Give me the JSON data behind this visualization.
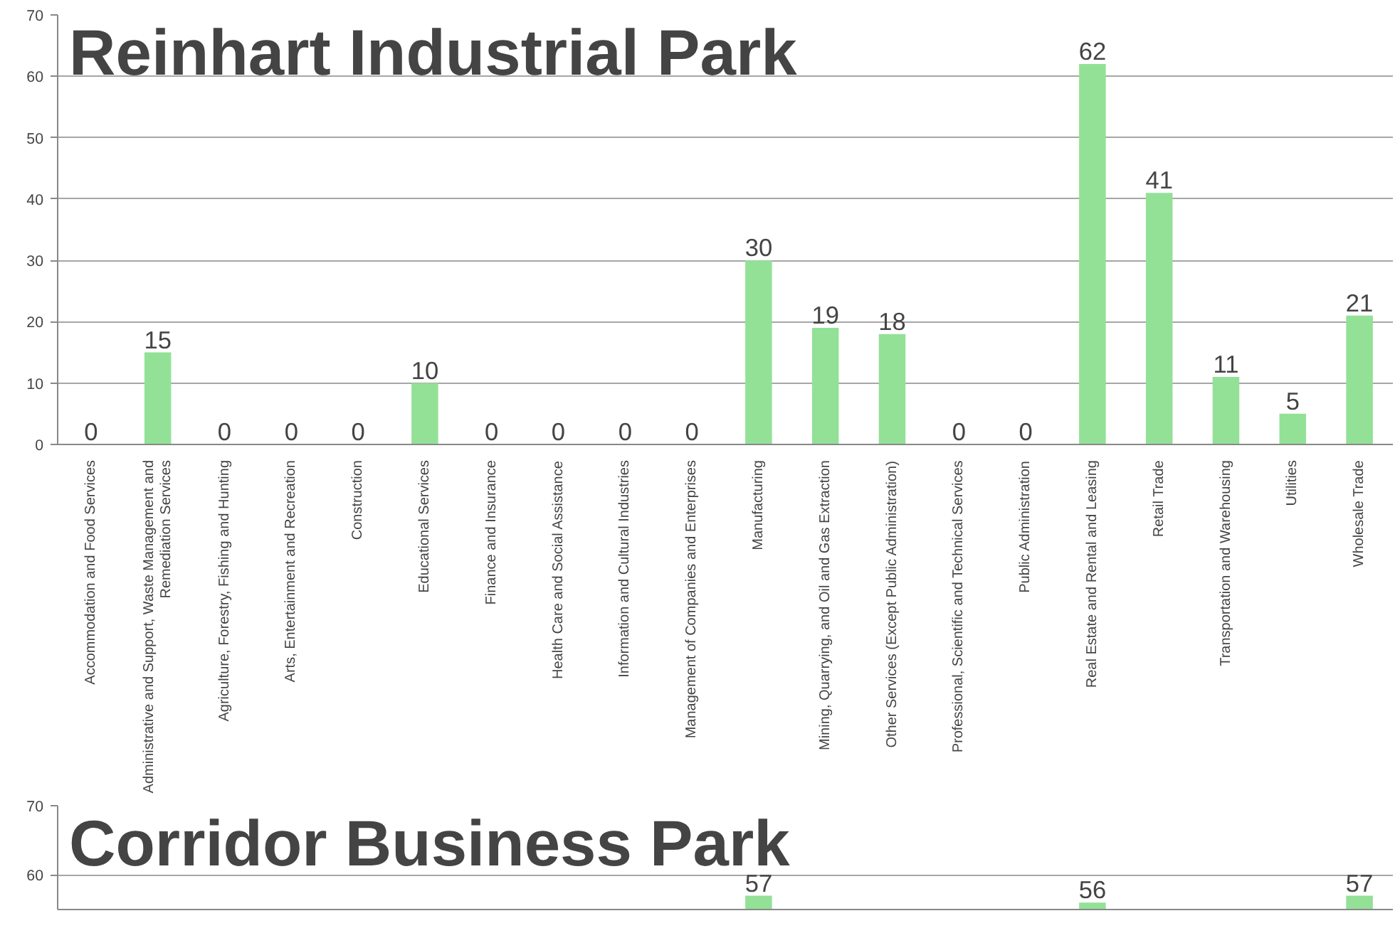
{
  "chart_data": [
    {
      "type": "bar",
      "title": "Reinhart Industrial Park",
      "color": "#93e197",
      "categories": [
        "Accommodation and Food Services",
        "Administrative and Support, Waste Management and Remediation Services",
        "Agriculture, Forestry, Fishing and Hunting",
        "Arts, Entertainment and Recreation",
        "Construction",
        "Educational Services",
        "Finance and Insurance",
        "Health Care and Social Assistance",
        "Information and Cultural Industries",
        "Management of Companies and Enterprises",
        "Manufacturing",
        "Mining, Quarrying, and Oil and Gas Extraction",
        "Other Services (Except Public Administration)",
        "Professional, Scientific and Technical Services",
        "Public Administration",
        "Real Estate and Rental and Leasing",
        "Retail Trade",
        "Transportation and Warehousing",
        "Utilities",
        "Wholesale Trade"
      ],
      "values": [
        0,
        15,
        0,
        0,
        0,
        10,
        0,
        0,
        0,
        0,
        30,
        19,
        18,
        0,
        0,
        62,
        41,
        11,
        5,
        21
      ],
      "ylim": [
        0,
        70
      ],
      "yticks": [
        0,
        10,
        20,
        30,
        40,
        50,
        60,
        70
      ],
      "grid": "y",
      "data_labels": true
    },
    {
      "type": "bar",
      "title": "Corridor Business Park",
      "categories": [
        null,
        null,
        null,
        null,
        null,
        null,
        null,
        null,
        null,
        null,
        null,
        null,
        null,
        null,
        null,
        null,
        null,
        null,
        null,
        null
      ],
      "values": [
        null,
        null,
        null,
        null,
        null,
        null,
        null,
        null,
        null,
        null,
        57,
        null,
        null,
        null,
        null,
        56,
        null,
        null,
        null,
        57
      ],
      "ylim": [
        55,
        70
      ],
      "yticks": [
        60,
        70
      ],
      "grid": "y",
      "data_labels": true
    }
  ]
}
